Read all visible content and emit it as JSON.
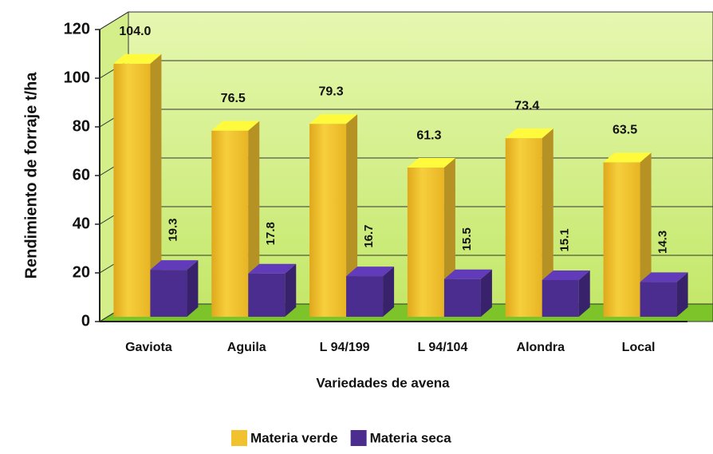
{
  "chart_data": {
    "type": "bar3d",
    "categories": [
      "Gaviota",
      "Aguila",
      "L 94/199",
      "L 94/104",
      "Alondra",
      "Local"
    ],
    "series": [
      {
        "name": "Materia verde",
        "color": "#f2c12e",
        "values": [
          104.0,
          76.5,
          79.3,
          61.3,
          73.4,
          63.5
        ],
        "value_labels": [
          "104.0",
          "76.5",
          "79.3",
          "61.3",
          "73.4",
          "63.5"
        ]
      },
      {
        "name": "Materia seca",
        "color": "#4b2d8f",
        "values": [
          19.3,
          17.8,
          16.7,
          15.5,
          15.1,
          14.3
        ],
        "value_labels": [
          "19.3",
          "17.8",
          "16.7",
          "15.5",
          "15.1",
          "14.3"
        ]
      }
    ],
    "ylabel": "Rendimiento de forraje t/ha",
    "xlabel": "Variedades de avena",
    "ylim": [
      0,
      120
    ],
    "yticks": [
      0,
      20,
      40,
      60,
      80,
      100,
      120
    ],
    "grid": true,
    "legend": "bottom"
  }
}
